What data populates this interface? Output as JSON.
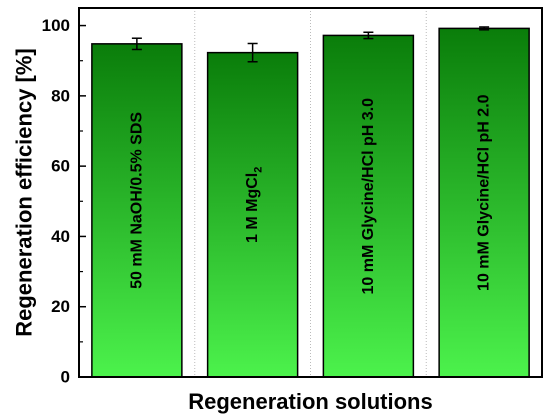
{
  "chart_data": {
    "type": "bar",
    "xlabel": "Regeneration solutions",
    "ylabel": "Regeneration efficiency [%]",
    "ylim": [
      0,
      105
    ],
    "yticks": [
      0,
      20,
      40,
      60,
      80,
      100
    ],
    "grid": "vertical dotted separators between bars",
    "categories": [
      "50 mM NaOH/0.5% SDS",
      "1 M MgCl2",
      "10 mM Glycine/HCl pH 3.0",
      "10 mM Glycine/HCl pH 2.0"
    ],
    "values": [
      94.8,
      92.3,
      97.2,
      99.2
    ],
    "errors": [
      1.6,
      2.6,
      0.9,
      0.4
    ],
    "bar_colors": {
      "top": "#0a7d0a",
      "bottom": "#4cf24c"
    }
  }
}
